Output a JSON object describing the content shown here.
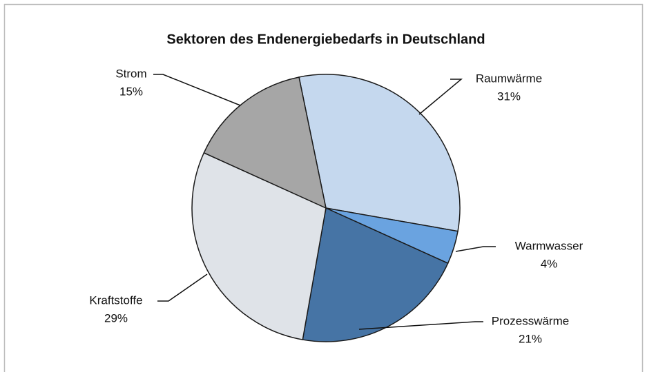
{
  "chart_data": {
    "type": "pie",
    "title": "Sektoren des Endenergiebedarfs in Deutschland",
    "categories": [
      "Raumwärme",
      "Warmwasser",
      "Prozesswärme",
      "Kraftstoffe",
      "Strom"
    ],
    "values": [
      31,
      4,
      21,
      29,
      15
    ],
    "value_labels": [
      "31%",
      "4%",
      "21%",
      "29%",
      "15%"
    ],
    "colors": [
      "#c5d8ee",
      "#6aa3e0",
      "#4674a5",
      "#dfe3e8",
      "#a6a6a6"
    ]
  }
}
